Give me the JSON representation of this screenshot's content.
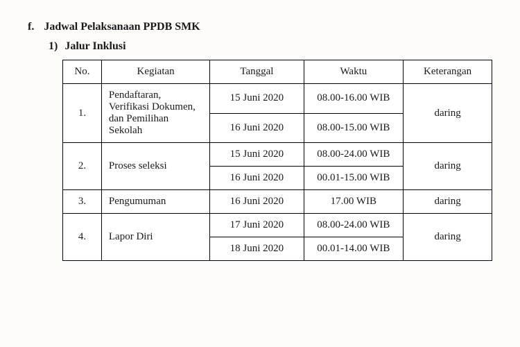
{
  "section": {
    "letter": "f.",
    "title": "Jadwal Pelaksanaan PPDB SMK",
    "sub_num": "1)",
    "sub_title": "Jalur Inklusi"
  },
  "table": {
    "headers": {
      "no": "No.",
      "kegiatan": "Kegiatan",
      "tanggal": "Tanggal",
      "waktu": "Waktu",
      "keterangan": "Keterangan"
    },
    "rows": [
      {
        "no": "1.",
        "kegiatan": "Pendaftaran, Verifikasi Dokumen, dan Pemilihan Sekolah",
        "sub": [
          {
            "tanggal": "15 Juni 2020",
            "waktu": "08.00-16.00 WIB"
          },
          {
            "tanggal": "16 Juni 2020",
            "waktu": "08.00-15.00 WIB"
          }
        ],
        "ket": "daring"
      },
      {
        "no": "2.",
        "kegiatan": "Proses seleksi",
        "sub": [
          {
            "tanggal": "15 Juni 2020",
            "waktu": "08.00-24.00 WIB"
          },
          {
            "tanggal": "16 Juni 2020",
            "waktu": "00.01-15.00 WIB"
          }
        ],
        "ket": "daring"
      },
      {
        "no": "3.",
        "kegiatan": "Pengumuman",
        "sub": [
          {
            "tanggal": "16 Juni 2020",
            "waktu": "17.00 WIB"
          }
        ],
        "ket": "daring"
      },
      {
        "no": "4.",
        "kegiatan": "Lapor Diri",
        "sub": [
          {
            "tanggal": "17 Juni 2020",
            "waktu": "08.00-24.00 WIB"
          },
          {
            "tanggal": "18 Juni 2020",
            "waktu": "00.01-14.00 WIB"
          }
        ],
        "ket": "daring"
      }
    ]
  }
}
